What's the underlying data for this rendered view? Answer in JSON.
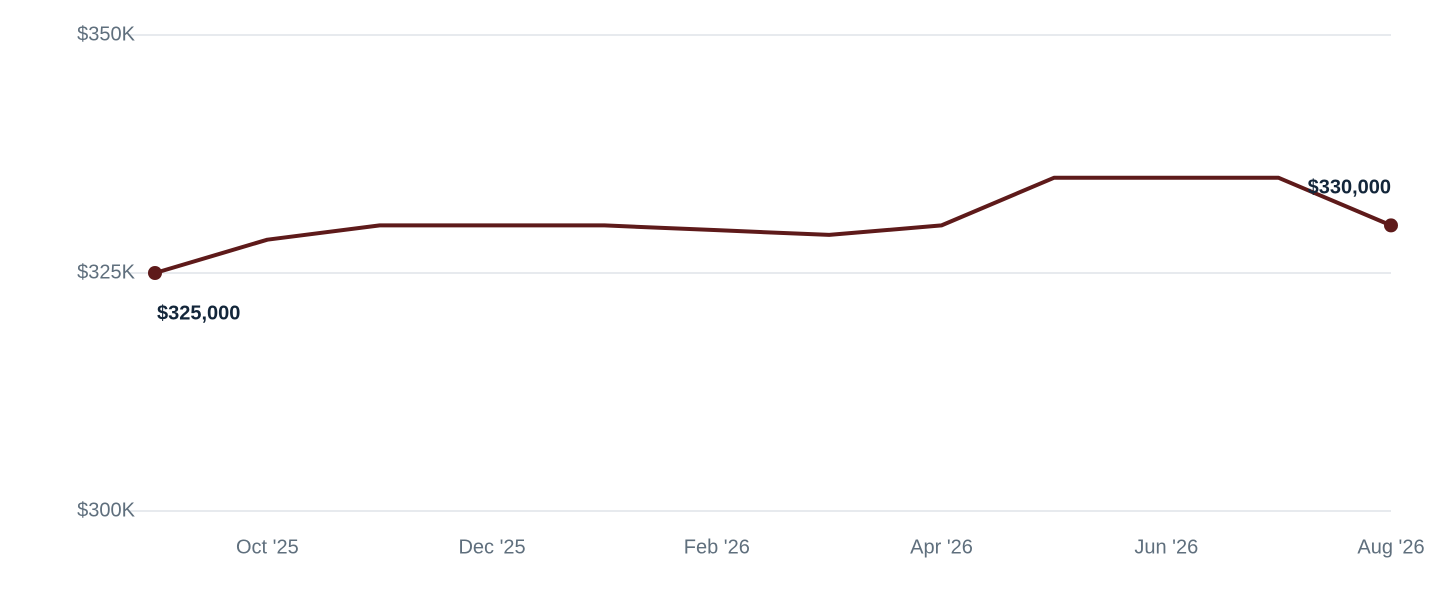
{
  "chart_data": {
    "type": "line",
    "categories": [
      null,
      "Oct '25",
      null,
      "Dec '25",
      null,
      "Feb '26",
      null,
      "Apr '26",
      null,
      "Jun '26",
      null,
      "Aug '26"
    ],
    "values": [
      325000,
      328500,
      330000,
      330000,
      330000,
      329500,
      329000,
      330000,
      335000,
      335000,
      335000,
      330000
    ],
    "value_labels": [
      "$325,000",
      null,
      null,
      null,
      null,
      null,
      null,
      null,
      null,
      null,
      null,
      "$330,000"
    ],
    "color": "#5e1a1a",
    "ylim": [
      300000,
      350000
    ],
    "yticks": [
      {
        "value": 300000,
        "label": "$300K"
      },
      {
        "value": 325000,
        "label": "$325K"
      },
      {
        "value": 350000,
        "label": "$350K"
      }
    ],
    "grid": true
  }
}
